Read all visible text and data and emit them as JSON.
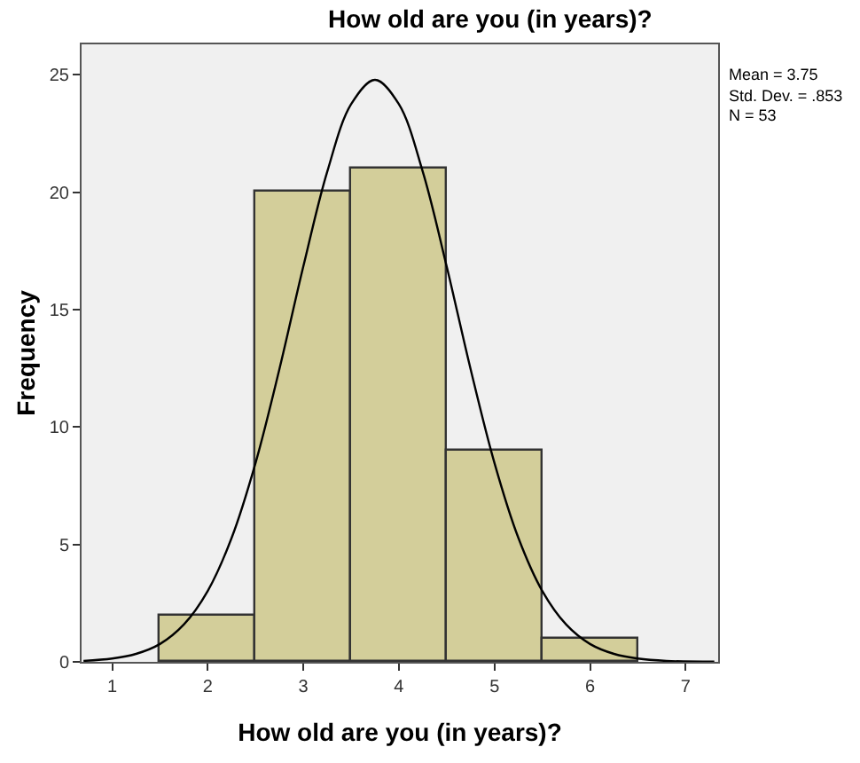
{
  "chart_data": {
    "type": "histogram",
    "title": "How old are you (in years)?",
    "xlabel": "How old are you (in years)?",
    "ylabel": "Frequency",
    "bins": [
      1.5,
      2.5,
      3.5,
      4.5,
      5.5,
      6.5
    ],
    "values": [
      2,
      20,
      21,
      9,
      1
    ],
    "color": "#d3ce9a",
    "series": [
      {
        "type": "line",
        "color": "#000000",
        "x": [
          0.7,
          1.0,
          1.25,
          1.5,
          1.75,
          2.0,
          2.25,
          2.5,
          2.75,
          3.0,
          3.25,
          3.5,
          3.75,
          4.0,
          4.25,
          4.5,
          4.75,
          5.0,
          5.25,
          5.5,
          5.75,
          6.0,
          6.25,
          6.5,
          6.8,
          7.3
        ],
        "values": [
          0.04,
          0.14,
          0.34,
          0.76,
          1.59,
          3.02,
          5.28,
          8.47,
          12.47,
          16.84,
          20.87,
          23.75,
          24.79,
          23.75,
          20.87,
          16.84,
          12.47,
          8.47,
          5.28,
          3.02,
          1.59,
          0.76,
          0.34,
          0.14,
          0.04,
          0.01
        ]
      }
    ],
    "xlim": [
      0.68,
      7.34
    ],
    "xticks": [
      1,
      2,
      3,
      4,
      5,
      6,
      7
    ],
    "ylim": [
      0,
      26.3
    ],
    "yticks": [
      0,
      5,
      10,
      15,
      20,
      25
    ],
    "grid": false,
    "annotations": [
      "Mean = 3.75",
      "Std. Dev. = .853",
      "N = 53"
    ]
  }
}
